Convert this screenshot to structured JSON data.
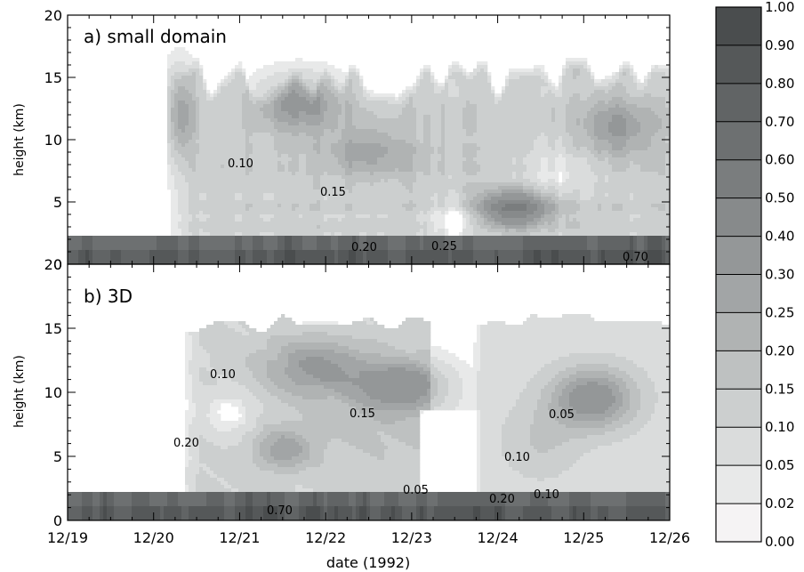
{
  "chart_data": [
    {
      "type": "heatmap",
      "panel_label": "a) small domain",
      "ylabel": "height (km)",
      "xlabel": "",
      "ylim": [
        0,
        20
      ],
      "yticks": [
        "0",
        "5",
        "10",
        "15",
        "20"
      ],
      "xlim": [
        "12/19",
        "12/26"
      ],
      "contour_labels": [
        "0.10",
        "0.15",
        "0.20",
        "0.25",
        "0.70"
      ],
      "features": [
        {
          "x": "12/20.3",
          "y": 12,
          "value": 0.25
        },
        {
          "x": "12/21.7",
          "y": 13,
          "value": 0.35
        },
        {
          "x": "12/22.5",
          "y": 9,
          "value": 0.3
        },
        {
          "x": "12/24.2",
          "y": 4.5,
          "value": 0.45
        },
        {
          "x": "12/25.4",
          "y": 11,
          "value": 0.3
        }
      ]
    },
    {
      "type": "heatmap",
      "panel_label": "b) 3D",
      "ylabel": "height (km)",
      "xlabel": "date (1992)",
      "ylim": [
        0,
        20
      ],
      "yticks": [
        "0",
        "5",
        "10",
        "15",
        "20"
      ],
      "xticks": [
        "12/19",
        "12/20",
        "12/21",
        "12/22",
        "12/23",
        "12/24",
        "12/25",
        "12/26"
      ],
      "contour_labels": [
        "0.10",
        "0.15",
        "0.20",
        "0.05",
        "0.70",
        "0.10",
        "0.05",
        "0.10",
        "0.20"
      ],
      "features": [
        {
          "x": "12/21.9",
          "y": 12,
          "value": 0.3
        },
        {
          "x": "12/22.9",
          "y": 10.5,
          "value": 0.35
        },
        {
          "x": "12/21.5",
          "y": 5.5,
          "value": 0.3
        },
        {
          "x": "12/25.1",
          "y": 9.5,
          "value": 0.4
        }
      ]
    }
  ],
  "colorbar": {
    "levels": [
      "1.00",
      "0.90",
      "0.80",
      "0.70",
      "0.60",
      "0.50",
      "0.40",
      "0.30",
      "0.25",
      "0.20",
      "0.15",
      "0.10",
      "0.05",
      "0.02",
      "0.00"
    ],
    "colors": [
      "#4a4d4e",
      "#555859",
      "#616465",
      "#6d7071",
      "#7a7d7e",
      "#878a8b",
      "#949798",
      "#a2a5a6",
      "#b0b3b3",
      "#bec1c1",
      "#cccfcf",
      "#dadcdc",
      "#e8e9e9",
      "#f5f3f4"
    ]
  }
}
